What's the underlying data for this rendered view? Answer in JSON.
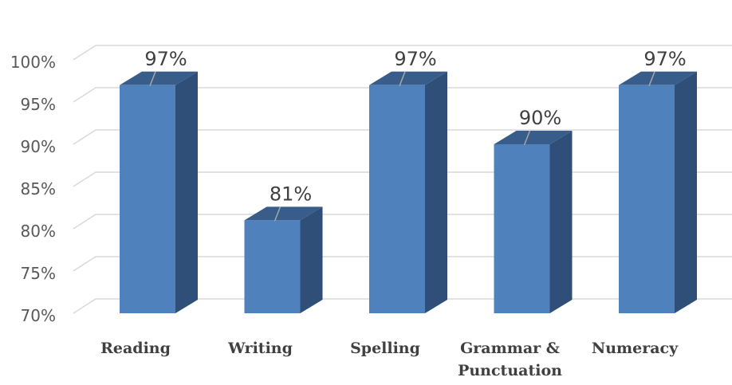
{
  "chart_data": {
    "type": "bar",
    "categories": [
      "Reading",
      "Writing",
      "Spelling",
      "Grammar & Punctuation",
      "Numeracy"
    ],
    "category_lines": [
      [
        "Reading"
      ],
      [
        "Writing"
      ],
      [
        "Spelling"
      ],
      [
        "Grammar &",
        "Punctuation"
      ],
      [
        "Numeracy"
      ]
    ],
    "values": [
      97,
      81,
      97,
      90,
      97
    ],
    "data_labels": [
      "97%",
      "81%",
      "97%",
      "90%",
      "97%"
    ],
    "y_ticks": [
      70,
      75,
      80,
      85,
      90,
      95,
      100
    ],
    "y_tick_labels": [
      "70%",
      "75%",
      "80%",
      "85%",
      "90%",
      "95%",
      "100%"
    ],
    "ylim": [
      70,
      100
    ],
    "title": "",
    "xlabel": "",
    "ylabel": "",
    "grid": true,
    "style": "3d-column",
    "colors": {
      "bar_front": "#4F81BD",
      "bar_side": "#2F4F79",
      "bar_top": "#385D8A",
      "grid": "#D9D9D9",
      "leader": "#A6A6A6"
    }
  }
}
